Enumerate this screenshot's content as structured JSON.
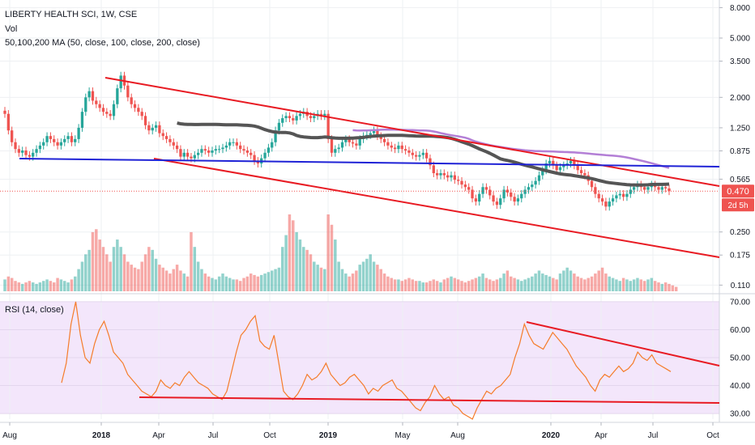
{
  "header": {
    "symbol_line": "LIBERTY HEALTH SCI, 1W, CSE",
    "vol_label": "Vol",
    "ma_label": "50,100,200 MA (50, close, 100, close, 200, close)"
  },
  "rsi_panel": {
    "label": "RSI (14, close)"
  },
  "price_badge": {
    "value": "0.470",
    "countdown": "2d 5h"
  },
  "colors": {
    "up": "#26a69a",
    "down": "#ef5350",
    "ma_dark": "#555555",
    "ma_purple": "#b37fd6",
    "trend_red": "#e81b23",
    "support_blue": "#1f22d6",
    "rsi_line": "#f57c2a",
    "rsi_band": "#f3e6fb"
  },
  "chart_data": {
    "type": "candlestick",
    "x_tick_labels": [
      "Aug",
      "2018",
      "Apr",
      "Jul",
      "Oct",
      "2019",
      "May",
      "Aug",
      "2020",
      "Apr",
      "Jul",
      "Oct"
    ],
    "price_axis": {
      "scale": "log",
      "ticks": [
        "8.000",
        "5.000",
        "3.500",
        "2.000",
        "1.250",
        "0.875",
        "0.565",
        "0.250",
        "0.175",
        "0.110"
      ],
      "ylim": [
        0.1,
        9
      ]
    },
    "rsi_axis": {
      "ticks": [
        "70.00",
        "60.00",
        "50.00",
        "40.00",
        "30.00"
      ],
      "ylim": [
        28,
        72
      ]
    },
    "price_close": [
      1.55,
      1.2,
      1.0,
      0.9,
      0.85,
      0.88,
      0.82,
      0.8,
      0.85,
      0.9,
      0.95,
      1.0,
      1.1,
      1.05,
      1.0,
      0.95,
      1.0,
      1.05,
      1.1,
      1.0,
      1.05,
      1.25,
      1.6,
      2.0,
      2.2,
      1.9,
      1.8,
      1.7,
      1.6,
      1.55,
      1.5,
      1.8,
      2.3,
      2.8,
      2.4,
      2.0,
      1.8,
      1.7,
      1.6,
      1.5,
      1.3,
      1.2,
      1.25,
      1.3,
      1.15,
      1.1,
      1.05,
      1.0,
      0.95,
      0.9,
      0.8,
      0.85,
      0.8,
      0.78,
      0.82,
      0.85,
      0.9,
      0.88,
      0.85,
      0.88,
      0.9,
      0.9,
      0.92,
      0.95,
      1.0,
      1.0,
      0.95,
      0.9,
      0.88,
      0.85,
      0.82,
      0.75,
      0.72,
      0.78,
      0.85,
      0.92,
      1.0,
      1.2,
      1.35,
      1.45,
      1.5,
      1.45,
      1.4,
      1.5,
      1.55,
      1.6,
      1.5,
      1.45,
      1.5,
      1.55,
      1.5,
      1.55,
      1.05,
      0.85,
      0.9,
      0.92,
      1.0,
      1.05,
      1.0,
      0.98,
      0.95,
      1.05,
      1.1,
      1.12,
      1.15,
      1.2,
      1.1,
      1.05,
      1.0,
      0.95,
      0.92,
      0.9,
      0.95,
      0.9,
      0.88,
      0.85,
      0.82,
      0.8,
      0.82,
      0.85,
      0.78,
      0.7,
      0.62,
      0.6,
      0.62,
      0.6,
      0.58,
      0.6,
      0.56,
      0.55,
      0.52,
      0.5,
      0.48,
      0.42,
      0.4,
      0.45,
      0.5,
      0.48,
      0.44,
      0.4,
      0.38,
      0.42,
      0.48,
      0.46,
      0.43,
      0.4,
      0.42,
      0.45,
      0.48,
      0.5,
      0.52,
      0.55,
      0.6,
      0.65,
      0.72,
      0.75,
      0.7,
      0.65,
      0.68,
      0.7,
      0.72,
      0.75,
      0.7,
      0.65,
      0.62,
      0.6,
      0.55,
      0.5,
      0.45,
      0.42,
      0.4,
      0.37,
      0.4,
      0.42,
      0.44,
      0.45,
      0.43,
      0.45,
      0.48,
      0.5,
      0.52,
      0.5,
      0.48,
      0.5,
      0.52,
      0.5,
      0.48,
      0.5,
      0.49,
      0.47
    ],
    "volume": [
      8,
      10,
      9,
      7,
      6,
      5,
      6,
      7,
      6,
      5,
      6,
      7,
      8,
      7,
      6,
      9,
      8,
      7,
      6,
      8,
      10,
      15,
      20,
      25,
      28,
      40,
      42,
      35,
      30,
      25,
      20,
      30,
      35,
      30,
      25,
      20,
      18,
      16,
      15,
      20,
      25,
      30,
      28,
      22,
      18,
      16,
      14,
      12,
      15,
      18,
      14,
      12,
      10,
      40,
      30,
      20,
      15,
      12,
      10,
      9,
      8,
      10,
      12,
      10,
      9,
      8,
      8,
      7,
      9,
      10,
      12,
      11,
      10,
      11,
      12,
      13,
      14,
      15,
      16,
      30,
      38,
      52,
      48,
      40,
      35,
      30,
      28,
      25,
      20,
      18,
      16,
      15,
      52,
      45,
      35,
      20,
      15,
      12,
      10,
      12,
      14,
      18,
      20,
      22,
      25,
      20,
      18,
      15,
      12,
      10,
      9,
      8,
      8,
      7,
      8,
      9,
      8,
      7,
      7,
      6,
      6,
      7,
      8,
      7,
      6,
      8,
      9,
      10,
      9,
      8,
      7,
      6,
      7,
      8,
      9,
      10,
      12,
      9,
      8,
      7,
      8,
      9,
      12,
      14,
      10,
      9,
      8,
      7,
      8,
      9,
      10,
      12,
      14,
      12,
      11,
      10,
      9,
      8,
      12,
      14,
      16,
      14,
      12,
      10,
      9,
      8,
      9,
      10,
      12,
      14,
      16,
      12,
      10,
      9,
      8,
      7,
      9,
      8,
      7,
      8,
      9,
      8,
      7,
      8,
      9,
      7,
      6,
      5,
      6,
      5,
      4,
      3
    ],
    "rsi": [
      41,
      48,
      62,
      70,
      58,
      50,
      48,
      55,
      60,
      63,
      58,
      52,
      50,
      48,
      44,
      42,
      40,
      38,
      37,
      36,
      38,
      42,
      40,
      39,
      41,
      40,
      43,
      45,
      43,
      41,
      40,
      39,
      37,
      36,
      35,
      38,
      45,
      52,
      58,
      60,
      63,
      65,
      56,
      54,
      53,
      58,
      48,
      38,
      36,
      35,
      37,
      40,
      44,
      42,
      43,
      45,
      48,
      44,
      42,
      40,
      41,
      43,
      44,
      42,
      40,
      37,
      39,
      38,
      40,
      41,
      42,
      39,
      38,
      36,
      34,
      32,
      31,
      34,
      36,
      40,
      37,
      35,
      36,
      33,
      32,
      30,
      29,
      28,
      32,
      35,
      38,
      37,
      39,
      40,
      42,
      44,
      50,
      55,
      62,
      58,
      55,
      54,
      53,
      56,
      59,
      57,
      55,
      53,
      50,
      47,
      45,
      43,
      40,
      38,
      42,
      44,
      43,
      45,
      47,
      45,
      46,
      48,
      52,
      50,
      49,
      51,
      48,
      47,
      46,
      45
    ]
  }
}
